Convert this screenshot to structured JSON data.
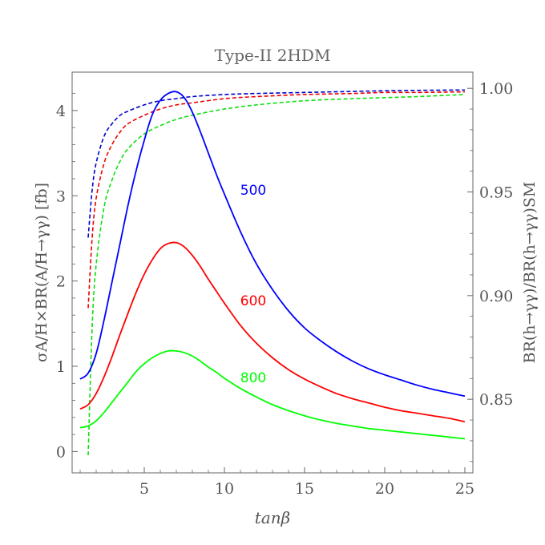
{
  "chart_data": {
    "type": "line",
    "title": "Type-II 2HDM",
    "xlabel": "tanβ",
    "ylabel_left": "σA/H×BR(A/H→γγ) [fb]",
    "ylabel_right": "BR(h→γγ)/BR(h→γγ)SM",
    "xlim": [
      0.5,
      25.5
    ],
    "ylim_left": [
      -0.25,
      4.45
    ],
    "ylim_right": [
      0.8145,
      1.0078
    ],
    "xticks": [
      5,
      10,
      15,
      20,
      25
    ],
    "xtick_labels": [
      "5",
      "10",
      "15",
      "20",
      "25"
    ],
    "yticks_left": [
      0,
      1,
      2,
      3,
      4
    ],
    "ytick_labels_left": [
      "0",
      "1",
      "2",
      "3",
      "4"
    ],
    "yticks_right": [
      0.85,
      0.9,
      0.95,
      1.0
    ],
    "ytick_labels_right": [
      "0.85",
      "0.90",
      "0.95",
      "1.00"
    ],
    "series_solid": [
      {
        "name": "500",
        "color": "#0000ff",
        "axis": "left",
        "x": [
          1,
          1.5,
          2,
          2.5,
          3,
          3.5,
          4,
          4.5,
          5,
          5.5,
          6,
          6.5,
          7,
          7.5,
          8,
          8.5,
          9,
          9.5,
          10,
          11,
          12,
          13,
          14,
          15,
          16,
          17,
          18,
          19,
          20,
          21,
          22,
          23,
          24,
          25
        ],
        "y": [
          0.85,
          0.92,
          1.15,
          1.55,
          2.0,
          2.45,
          2.9,
          3.3,
          3.65,
          3.95,
          4.12,
          4.2,
          4.22,
          4.15,
          3.98,
          3.75,
          3.5,
          3.25,
          3.02,
          2.58,
          2.2,
          1.9,
          1.65,
          1.45,
          1.3,
          1.17,
          1.06,
          0.97,
          0.9,
          0.84,
          0.78,
          0.73,
          0.69,
          0.65
        ],
        "label_x": 11.8,
        "label_y": 3.07
      },
      {
        "name": "600",
        "color": "#ff0000",
        "axis": "left",
        "x": [
          1,
          1.5,
          2,
          2.5,
          3,
          3.5,
          4,
          4.5,
          5,
          5.5,
          6,
          6.5,
          7,
          7.5,
          8,
          8.5,
          9,
          9.5,
          10,
          11,
          12,
          13,
          14,
          15,
          16,
          17,
          18,
          19,
          20,
          21,
          22,
          23,
          24,
          25
        ],
        "y": [
          0.5,
          0.55,
          0.68,
          0.88,
          1.12,
          1.38,
          1.63,
          1.87,
          2.08,
          2.25,
          2.38,
          2.44,
          2.45,
          2.4,
          2.3,
          2.17,
          2.02,
          1.88,
          1.74,
          1.48,
          1.27,
          1.1,
          0.96,
          0.85,
          0.76,
          0.68,
          0.62,
          0.57,
          0.52,
          0.48,
          0.45,
          0.42,
          0.39,
          0.35
        ],
        "label_x": 11.8,
        "label_y": 1.77
      },
      {
        "name": "800",
        "color": "#00ff00",
        "axis": "left",
        "x": [
          1,
          1.5,
          2,
          2.5,
          3,
          3.5,
          4,
          4.5,
          5,
          5.5,
          6,
          6.5,
          7,
          7.5,
          8,
          8.5,
          9,
          9.5,
          10,
          11,
          12,
          13,
          14,
          15,
          16,
          17,
          18,
          19,
          20,
          21,
          22,
          23,
          24,
          25
        ],
        "y": [
          0.28,
          0.3,
          0.36,
          0.46,
          0.58,
          0.7,
          0.82,
          0.94,
          1.03,
          1.1,
          1.15,
          1.18,
          1.18,
          1.16,
          1.12,
          1.06,
          0.99,
          0.93,
          0.86,
          0.74,
          0.64,
          0.55,
          0.48,
          0.42,
          0.37,
          0.33,
          0.3,
          0.27,
          0.25,
          0.23,
          0.21,
          0.19,
          0.17,
          0.15
        ],
        "label_x": 11.8,
        "label_y": 0.87
      }
    ],
    "series_dashed": [
      {
        "name": "500",
        "color": "#0000cc",
        "axis": "right",
        "x": [
          1.5,
          1.75,
          2,
          2.5,
          3,
          3.5,
          4,
          5,
          6,
          7,
          8,
          10,
          12,
          15,
          18,
          20,
          22,
          25
        ],
        "y": [
          0.928,
          0.951,
          0.964,
          0.977,
          0.983,
          0.987,
          0.989,
          0.992,
          0.994,
          0.995,
          0.996,
          0.997,
          0.9975,
          0.998,
          0.9985,
          0.9988,
          0.999,
          0.9992
        ]
      },
      {
        "name": "600",
        "color": "#ee0000",
        "axis": "right",
        "x": [
          1.5,
          1.75,
          2,
          2.5,
          3,
          3.5,
          4,
          5,
          6,
          7,
          8,
          10,
          12,
          15,
          18,
          20,
          22,
          25
        ],
        "y": [
          0.894,
          0.928,
          0.947,
          0.964,
          0.973,
          0.979,
          0.983,
          0.987,
          0.99,
          0.992,
          0.993,
          0.995,
          0.996,
          0.997,
          0.9975,
          0.998,
          0.998,
          0.9983
        ]
      },
      {
        "name": "800",
        "color": "#11dd11",
        "axis": "right",
        "x": [
          1.5,
          1.75,
          2,
          2.5,
          3,
          3.5,
          4,
          5,
          6,
          7,
          8,
          10,
          12,
          15,
          18,
          20,
          22,
          25
        ],
        "y": [
          0.823,
          0.885,
          0.915,
          0.943,
          0.956,
          0.965,
          0.971,
          0.978,
          0.982,
          0.985,
          0.987,
          0.99,
          0.992,
          0.994,
          0.995,
          0.9955,
          0.996,
          0.997
        ]
      }
    ],
    "grid": false,
    "legend": "inline labels"
  }
}
